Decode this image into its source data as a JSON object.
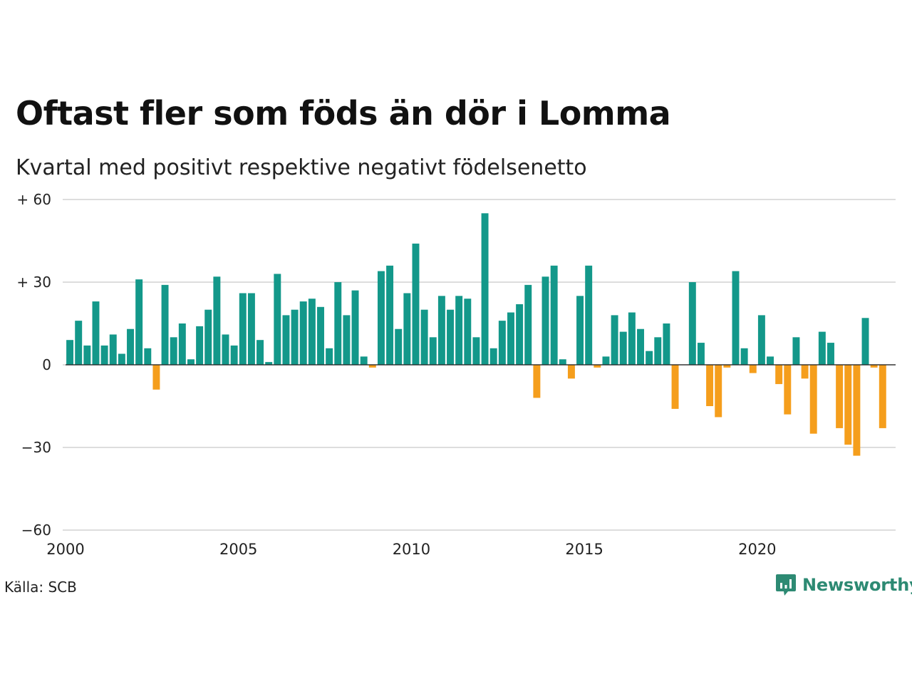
{
  "title": "Oftast fler som föds än dör i Lomma",
  "subtitle": "Kvartal med positivt respektive negativt födelsenetto",
  "source": "Källa: SCB",
  "brand": "Newsworthy",
  "colors": {
    "positive": "#13988a",
    "negative": "#f59e1c",
    "grid": "#dddddd",
    "brand": "#2d8a73"
  },
  "chart_data": {
    "type": "bar",
    "title": "Oftast fler som föds än dör i Lomma",
    "subtitle": "Kvartal med positivt respektive negativt födelsenetto",
    "xlabel": "",
    "ylabel": "",
    "ylim": [
      -60,
      60
    ],
    "xlim": [
      2000,
      2024
    ],
    "yticks": [
      -60,
      -30,
      0,
      30,
      60
    ],
    "ytick_labels": [
      "−60",
      "−30",
      "0",
      "+ 30",
      "+ 60"
    ],
    "xticks": [
      2000,
      2005,
      2010,
      2015,
      2020
    ],
    "xtick_labels": [
      "2000",
      "2005",
      "2010",
      "2015",
      "2020"
    ],
    "grid": true,
    "legend": "none",
    "start_period": "2000 Q1",
    "frequency": "quarterly",
    "values": [
      9,
      16,
      7,
      23,
      7,
      11,
      4,
      13,
      31,
      6,
      -9,
      29,
      10,
      15,
      2,
      14,
      20,
      32,
      11,
      7,
      26,
      26,
      9,
      1,
      33,
      18,
      20,
      23,
      24,
      21,
      6,
      30,
      18,
      27,
      3,
      -1,
      34,
      36,
      13,
      26,
      44,
      20,
      10,
      25,
      20,
      25,
      24,
      10,
      55,
      6,
      16,
      19,
      22,
      29,
      -12,
      32,
      36,
      2,
      -5,
      25,
      36,
      -1,
      3,
      18,
      12,
      19,
      13,
      5,
      10,
      15,
      -16,
      0,
      30,
      8,
      -15,
      -19,
      -1,
      34,
      6,
      -3,
      18,
      3,
      -7,
      -18,
      10,
      -5,
      -25,
      12,
      8,
      -23,
      -29,
      -33,
      17,
      -1,
      -23
    ]
  }
}
